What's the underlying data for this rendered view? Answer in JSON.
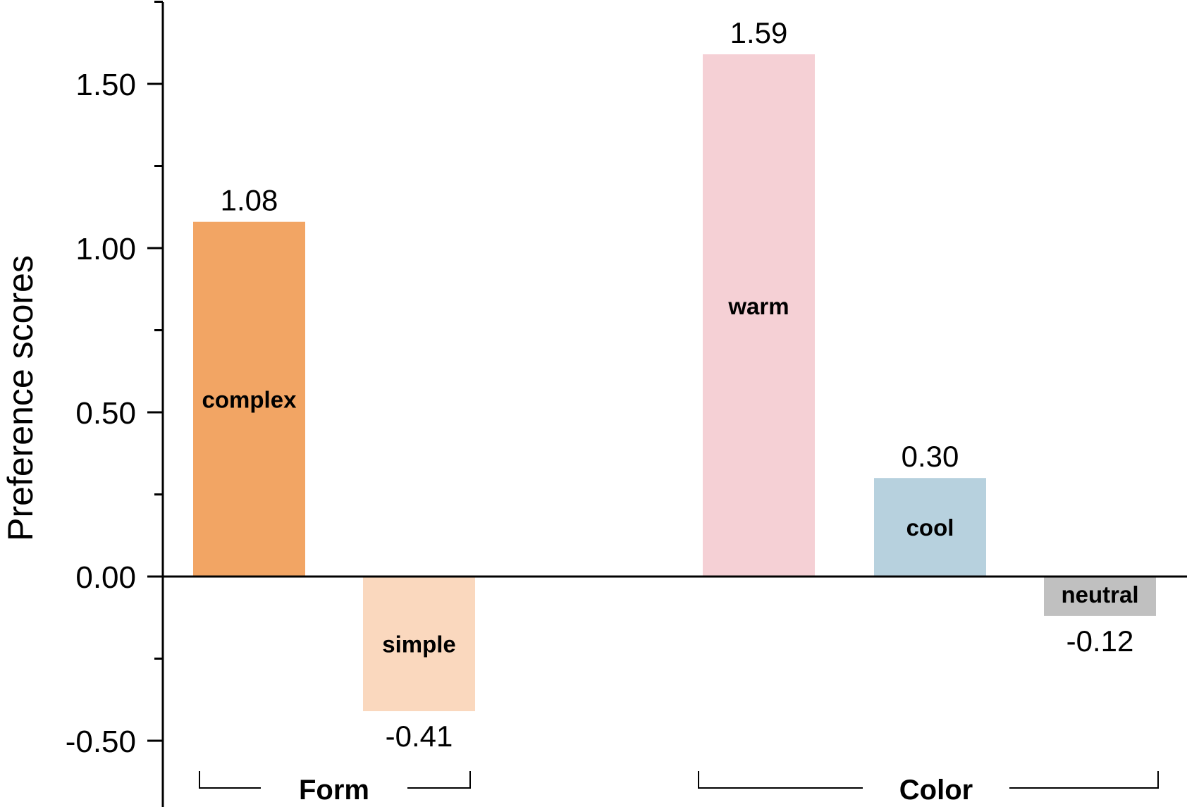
{
  "chart_data": {
    "type": "bar",
    "ylabel": "Preference scores",
    "ylim": [
      -0.65,
      1.75
    ],
    "y_ticks": [
      {
        "value": -0.5,
        "label": "-0.50"
      },
      {
        "value": 0.0,
        "label": "0.00"
      },
      {
        "value": 0.5,
        "label": "0.50"
      },
      {
        "value": 1.0,
        "label": "1.00"
      },
      {
        "value": 1.5,
        "label": "1.50"
      }
    ],
    "y_minor_ticks": [
      -0.25,
      0.25,
      0.75,
      1.25,
      1.75
    ],
    "grid": false,
    "legend": "none",
    "bars": [
      {
        "category": "complex",
        "value": 1.08,
        "value_label": "1.08",
        "color": "#F2A564",
        "group": "Form"
      },
      {
        "category": "simple",
        "value": -0.41,
        "value_label": "-0.41",
        "color": "#FAD8BE",
        "group": "Form"
      },
      {
        "category": "warm",
        "value": 1.59,
        "value_label": "1.59",
        "color": "#F5D0D5",
        "group": "Color"
      },
      {
        "category": "cool",
        "value": 0.3,
        "value_label": "0.30",
        "color": "#B7D1DE",
        "group": "Color"
      },
      {
        "category": "neutral",
        "value": -0.12,
        "value_label": "-0.12",
        "color": "#C0C0C0",
        "group": "Color"
      }
    ],
    "groups": [
      {
        "name": "Form",
        "members": [
          "complex",
          "simple"
        ]
      },
      {
        "name": "Color",
        "members": [
          "warm",
          "cool",
          "neutral"
        ]
      }
    ]
  }
}
